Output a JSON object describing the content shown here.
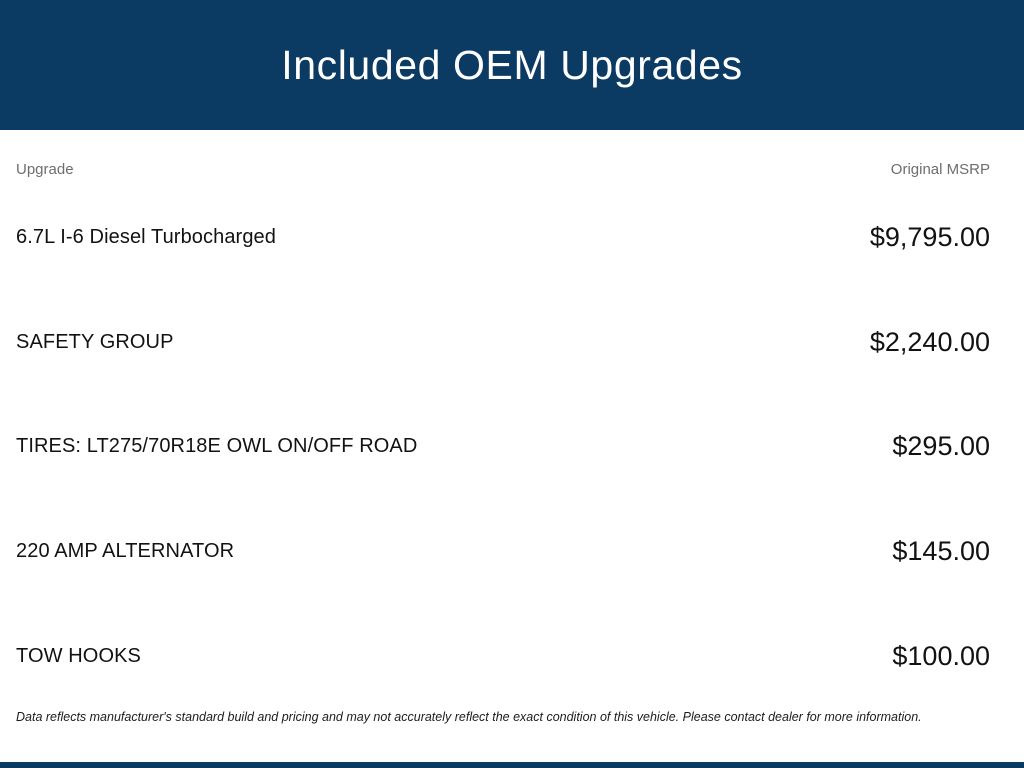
{
  "header": {
    "title": "Included OEM Upgrades"
  },
  "table": {
    "columns": {
      "upgrade": "Upgrade",
      "msrp": "Original MSRP"
    },
    "rows": [
      {
        "upgrade": "6.7L I-6 Diesel Turbocharged",
        "msrp": "$9,795.00"
      },
      {
        "upgrade": "SAFETY GROUP",
        "msrp": "$2,240.00"
      },
      {
        "upgrade": "TIRES: LT275/70R18E OWL ON/OFF ROAD",
        "msrp": "$295.00"
      },
      {
        "upgrade": "220 AMP ALTERNATOR",
        "msrp": "$145.00"
      },
      {
        "upgrade": "TOW HOOKS",
        "msrp": "$100.00"
      }
    ]
  },
  "disclaimer": "Data reflects manufacturer's standard build and pricing and may not accurately reflect the exact condition of this vehicle. Please contact dealer for more information.",
  "colors": {
    "accent": "#0b3a63",
    "header_text": "#ffffff",
    "muted_label": "#6d6d6d",
    "body_text": "#121212"
  }
}
